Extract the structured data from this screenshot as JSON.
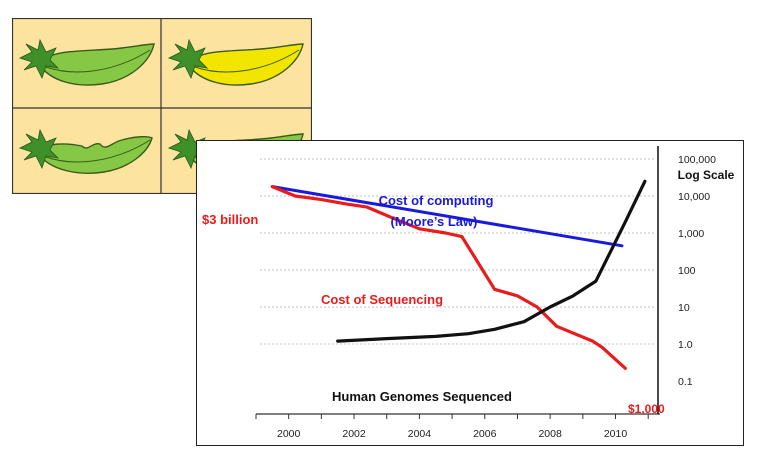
{
  "pea_panel": {
    "pods": [
      {
        "name": "smooth-green-pod",
        "color": "#86c845",
        "shape": "smooth"
      },
      {
        "name": "smooth-yellow-pod",
        "color": "#f2e600",
        "shape": "smooth"
      },
      {
        "name": "constricted-green-pod",
        "color": "#86c845",
        "shape": "constricted"
      },
      {
        "name": "smooth-green-pod",
        "color": "#86c845",
        "shape": "smooth"
      }
    ],
    "background_color": "#fde3a0"
  },
  "chart_data": {
    "type": "line",
    "y_scale": "log",
    "ylabel": "Log Scale",
    "xlim": [
      1999,
      2011.3
    ],
    "ylim": [
      0.1,
      100000
    ],
    "x_ticks": [
      "2000",
      "2002",
      "2004",
      "2006",
      "2008",
      "2010"
    ],
    "y_ticks": [
      "100,000",
      "10,000",
      "1,000",
      "100",
      "10",
      "1.0",
      "0.1"
    ],
    "grid": "horizontal-dotted",
    "series": [
      {
        "name": "Cost of computing (Moore's Law)",
        "label_lines": [
          "Cost of computing",
          "(Moore’s Law)"
        ],
        "color": "#1a1adc",
        "x": [
          1999.5,
          2010.2
        ],
        "y": [
          18000,
          450
        ]
      },
      {
        "name": "Cost of Sequencing",
        "label_lines": [
          "Cost of Sequencing"
        ],
        "color": "#e81c1c",
        "x": [
          1999.5,
          2000.2,
          2001,
          2001.8,
          2002.4,
          2003.2,
          2004,
          2004.8,
          2005.3,
          2006.3,
          2007,
          2007.6,
          2008.2,
          2009.3,
          2009.6,
          2010.3
        ],
        "y": [
          18000,
          10000,
          8000,
          6000,
          5000,
          2500,
          1300,
          1000,
          800,
          30,
          20,
          10,
          3,
          1.2,
          0.8,
          0.22
        ]
      },
      {
        "name": "Human Genomes Sequenced",
        "label_lines": [
          "Human Genomes Sequenced"
        ],
        "color": "#111111",
        "x": [
          2001.5,
          2003,
          2004.5,
          2005.5,
          2006.3,
          2007.2,
          2008,
          2008.7,
          2009.4,
          2010.3,
          2010.9
        ],
        "y": [
          1.2,
          1.4,
          1.6,
          1.9,
          2.5,
          4,
          10,
          20,
          50,
          2000,
          25000
        ]
      }
    ],
    "annotations": [
      {
        "text": "$3 billion",
        "color": "#e81c1c"
      },
      {
        "text": "$1,000",
        "color": "#e81c1c"
      }
    ]
  }
}
